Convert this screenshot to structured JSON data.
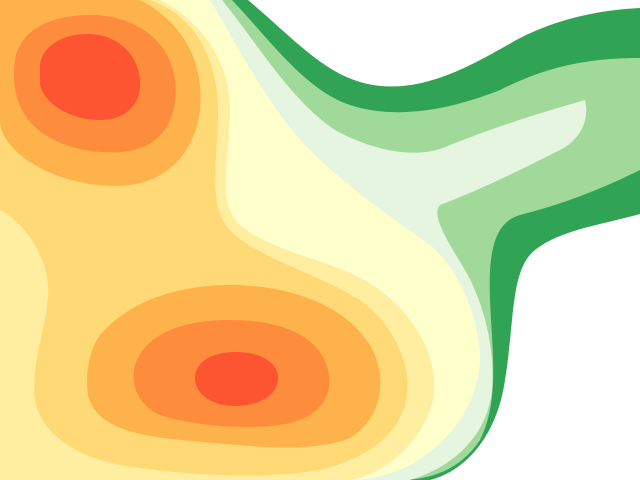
{
  "chart_data": {
    "type": "heatmap",
    "subtype": "filled-contour",
    "title": "",
    "xlabel": "",
    "ylabel": "",
    "axes_visible": false,
    "grid": false,
    "legend": "none",
    "levels": [
      {
        "rank": 1,
        "color": "#fd5532"
      },
      {
        "rank": 2,
        "color": "#fd8d3c"
      },
      {
        "rank": 3,
        "color": "#feb24c"
      },
      {
        "rank": 4,
        "color": "#fed976"
      },
      {
        "rank": 5,
        "color": "#ffeda0"
      },
      {
        "rank": 6,
        "color": "#ffffcc"
      },
      {
        "rank": 7,
        "color": "#e5f5e0"
      },
      {
        "rank": 8,
        "color": "#a1d99b"
      },
      {
        "rank": 9,
        "color": "#31a354"
      },
      {
        "rank": 10,
        "color": "#ffffff"
      }
    ],
    "peaks": [
      {
        "name": "upper-left-peak",
        "level_rank": 1
      },
      {
        "name": "lower-center-peak",
        "level_rank": 1
      }
    ]
  }
}
